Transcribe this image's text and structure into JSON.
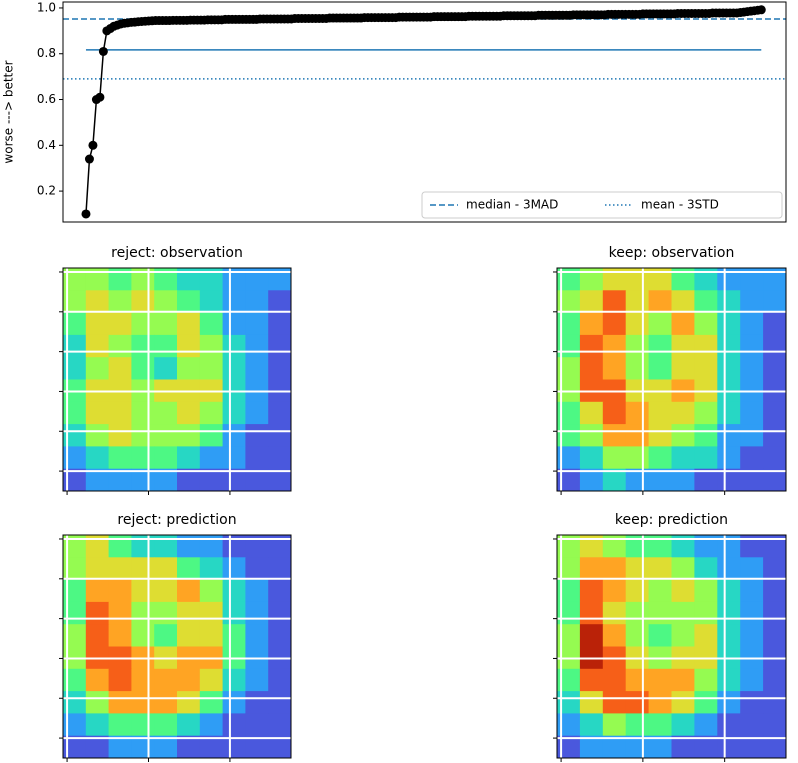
{
  "chart_data": [
    {
      "type": "line",
      "ylabel": "worse ---> better",
      "xlim": [
        -6.6,
        201.1
      ],
      "ylim": [
        0.065,
        1.026
      ],
      "yticks": [
        {
          "value": 0.2,
          "label": "0.2"
        },
        {
          "value": 0.4,
          "label": "0.4"
        },
        {
          "value": 0.6,
          "label": "0.6"
        },
        {
          "value": 0.8,
          "label": "0.8"
        },
        {
          "value": 1.0,
          "label": "1.0"
        }
      ],
      "series": [
        {
          "color": "#000000",
          "marker": "o",
          "values": [
            0.1,
            0.34,
            0.4,
            0.6,
            0.61,
            0.81,
            0.9,
            0.91,
            0.92,
            0.925,
            0.93,
            0.933,
            0.935,
            0.937,
            0.938,
            0.94,
            0.941,
            0.942,
            0.943,
            0.944,
            0.945,
            0.945,
            0.945,
            0.945,
            0.945,
            0.946,
            0.946,
            0.946,
            0.946,
            0.946,
            0.947,
            0.947,
            0.947,
            0.947,
            0.947,
            0.948,
            0.948,
            0.948,
            0.948,
            0.948,
            0.95,
            0.95,
            0.95,
            0.95,
            0.95,
            0.95,
            0.95,
            0.95,
            0.95,
            0.95,
            0.952,
            0.952,
            0.952,
            0.952,
            0.952,
            0.952,
            0.952,
            0.952,
            0.952,
            0.952,
            0.954,
            0.954,
            0.954,
            0.954,
            0.954,
            0.954,
            0.954,
            0.954,
            0.954,
            0.954,
            0.956,
            0.956,
            0.956,
            0.956,
            0.956,
            0.956,
            0.956,
            0.956,
            0.956,
            0.956,
            0.958,
            0.958,
            0.958,
            0.958,
            0.958,
            0.958,
            0.958,
            0.958,
            0.958,
            0.958,
            0.96,
            0.96,
            0.96,
            0.96,
            0.96,
            0.96,
            0.96,
            0.96,
            0.96,
            0.96,
            0.962,
            0.962,
            0.962,
            0.962,
            0.962,
            0.962,
            0.962,
            0.962,
            0.962,
            0.962,
            0.964,
            0.964,
            0.964,
            0.964,
            0.964,
            0.964,
            0.964,
            0.964,
            0.964,
            0.964,
            0.966,
            0.966,
            0.966,
            0.966,
            0.966,
            0.966,
            0.966,
            0.966,
            0.966,
            0.966,
            0.968,
            0.968,
            0.968,
            0.968,
            0.968,
            0.968,
            0.968,
            0.968,
            0.968,
            0.968,
            0.97,
            0.97,
            0.97,
            0.97,
            0.97,
            0.97,
            0.97,
            0.97,
            0.97,
            0.97,
            0.972,
            0.972,
            0.972,
            0.972,
            0.972,
            0.972,
            0.972,
            0.972,
            0.972,
            0.972,
            0.974,
            0.974,
            0.974,
            0.974,
            0.974,
            0.974,
            0.974,
            0.974,
            0.974,
            0.974,
            0.976,
            0.976,
            0.976,
            0.976,
            0.976,
            0.976,
            0.976,
            0.976,
            0.976,
            0.976,
            0.978,
            0.978,
            0.978,
            0.978,
            0.978,
            0.978,
            0.978,
            0.978,
            0.98,
            0.982,
            0.984,
            0.986,
            0.988,
            0.99,
            0.992
          ]
        }
      ],
      "hlines": [
        {
          "name": "median - 3MAD",
          "value": 0.952,
          "style": "dashed",
          "color": "#1f77b4"
        },
        {
          "name": "mean - 3STD",
          "value": 0.69,
          "style": "dotted",
          "color": "#1f77b4"
        },
        {
          "value": 0.817,
          "style": "solid",
          "color": "#1f77b4",
          "xrange": [
            0,
            194
          ]
        }
      ],
      "legend": "lower right"
    },
    {
      "type": "heatmap",
      "title": "reject: observation",
      "colormap": "turbo",
      "clim": [
        0,
        1
      ],
      "grid": true,
      "xlim": [
        -0.5,
        27.5
      ],
      "ylim": [
        27.5,
        -0.5
      ],
      "xticks": [
        0,
        10,
        20
      ],
      "yticks": [
        0,
        5,
        10,
        15,
        20,
        25
      ],
      "values": [
        [
          0.5,
          0.5,
          0.4,
          0.5,
          0.4,
          0.3,
          0.3,
          0.2,
          0.2,
          0.2
        ],
        [
          0.5,
          0.6,
          0.5,
          0.6,
          0.5,
          0.4,
          0.3,
          0.2,
          0.2,
          0.1
        ],
        [
          0.4,
          0.6,
          0.6,
          0.5,
          0.5,
          0.6,
          0.4,
          0.2,
          0.2,
          0.1
        ],
        [
          0.3,
          0.6,
          0.5,
          0.4,
          0.4,
          0.6,
          0.5,
          0.3,
          0.2,
          0.1
        ],
        [
          0.3,
          0.5,
          0.6,
          0.4,
          0.3,
          0.5,
          0.5,
          0.3,
          0.2,
          0.1
        ],
        [
          0.4,
          0.6,
          0.6,
          0.5,
          0.6,
          0.6,
          0.6,
          0.3,
          0.2,
          0.1
        ],
        [
          0.4,
          0.6,
          0.6,
          0.5,
          0.5,
          0.6,
          0.5,
          0.3,
          0.2,
          0.1
        ],
        [
          0.3,
          0.5,
          0.6,
          0.5,
          0.5,
          0.5,
          0.4,
          0.2,
          0.1,
          0.1
        ],
        [
          0.2,
          0.3,
          0.4,
          0.4,
          0.4,
          0.3,
          0.2,
          0.2,
          0.1,
          0.1
        ],
        [
          0.1,
          0.2,
          0.2,
          0.2,
          0.2,
          0.1,
          0.1,
          0.1,
          0.1,
          0.1
        ]
      ]
    },
    {
      "type": "heatmap",
      "title": "keep: observation",
      "colormap": "turbo",
      "clim": [
        0,
        1
      ],
      "grid": true,
      "xlim": [
        -0.5,
        27.5
      ],
      "ylim": [
        27.5,
        -0.5
      ],
      "xticks": [
        0,
        10,
        20
      ],
      "yticks": [
        0,
        5,
        10,
        15,
        20,
        25
      ],
      "values": [
        [
          0.4,
          0.5,
          0.6,
          0.6,
          0.6,
          0.4,
          0.3,
          0.2,
          0.2,
          0.2
        ],
        [
          0.5,
          0.6,
          0.8,
          0.6,
          0.7,
          0.6,
          0.4,
          0.3,
          0.2,
          0.2
        ],
        [
          0.4,
          0.7,
          0.8,
          0.6,
          0.5,
          0.7,
          0.5,
          0.3,
          0.2,
          0.1
        ],
        [
          0.4,
          0.8,
          0.7,
          0.5,
          0.4,
          0.6,
          0.6,
          0.3,
          0.2,
          0.1
        ],
        [
          0.5,
          0.8,
          0.7,
          0.5,
          0.4,
          0.6,
          0.6,
          0.3,
          0.2,
          0.1
        ],
        [
          0.5,
          0.8,
          0.8,
          0.6,
          0.6,
          0.7,
          0.6,
          0.3,
          0.2,
          0.1
        ],
        [
          0.4,
          0.6,
          0.8,
          0.7,
          0.6,
          0.6,
          0.5,
          0.3,
          0.2,
          0.1
        ],
        [
          0.4,
          0.5,
          0.7,
          0.7,
          0.6,
          0.5,
          0.4,
          0.2,
          0.2,
          0.1
        ],
        [
          0.2,
          0.3,
          0.5,
          0.5,
          0.4,
          0.3,
          0.3,
          0.2,
          0.1,
          0.1
        ],
        [
          0.1,
          0.2,
          0.3,
          0.2,
          0.2,
          0.2,
          0.1,
          0.1,
          0.1,
          0.1
        ]
      ]
    },
    {
      "type": "heatmap",
      "title": "reject: prediction",
      "colormap": "turbo",
      "clim": [
        0,
        1
      ],
      "grid": true,
      "xlim": [
        -0.5,
        27.5
      ],
      "ylim": [
        27.5,
        -0.5
      ],
      "xticks": [
        0,
        10,
        20
      ],
      "yticks": [
        0,
        5,
        10,
        15,
        20,
        25
      ],
      "values": [
        [
          0.5,
          0.6,
          0.4,
          0.3,
          0.3,
          0.2,
          0.2,
          0.1,
          0.1,
          0.1
        ],
        [
          0.5,
          0.6,
          0.6,
          0.6,
          0.6,
          0.4,
          0.3,
          0.2,
          0.1,
          0.1
        ],
        [
          0.4,
          0.7,
          0.7,
          0.6,
          0.6,
          0.7,
          0.5,
          0.3,
          0.2,
          0.1
        ],
        [
          0.4,
          0.8,
          0.7,
          0.5,
          0.5,
          0.6,
          0.6,
          0.3,
          0.2,
          0.1
        ],
        [
          0.5,
          0.8,
          0.7,
          0.5,
          0.4,
          0.6,
          0.6,
          0.4,
          0.2,
          0.1
        ],
        [
          0.5,
          0.8,
          0.8,
          0.7,
          0.6,
          0.7,
          0.7,
          0.4,
          0.2,
          0.1
        ],
        [
          0.4,
          0.7,
          0.8,
          0.7,
          0.7,
          0.7,
          0.6,
          0.3,
          0.2,
          0.1
        ],
        [
          0.3,
          0.5,
          0.7,
          0.7,
          0.7,
          0.6,
          0.4,
          0.2,
          0.1,
          0.1
        ],
        [
          0.2,
          0.3,
          0.4,
          0.4,
          0.4,
          0.3,
          0.2,
          0.1,
          0.1,
          0.1
        ],
        [
          0.1,
          0.1,
          0.2,
          0.2,
          0.2,
          0.1,
          0.1,
          0.1,
          0.1,
          0.1
        ]
      ]
    },
    {
      "type": "heatmap",
      "title": "keep: prediction",
      "colormap": "turbo",
      "clim": [
        0,
        1
      ],
      "grid": true,
      "xlim": [
        -0.5,
        27.5
      ],
      "ylim": [
        27.5,
        -0.5
      ],
      "xticks": [
        0,
        10,
        20
      ],
      "yticks": [
        0,
        5,
        10,
        15,
        20,
        25
      ],
      "values": [
        [
          0.5,
          0.6,
          0.5,
          0.4,
          0.4,
          0.3,
          0.2,
          0.2,
          0.1,
          0.1
        ],
        [
          0.5,
          0.7,
          0.7,
          0.6,
          0.6,
          0.5,
          0.3,
          0.2,
          0.2,
          0.1
        ],
        [
          0.4,
          0.8,
          0.7,
          0.6,
          0.5,
          0.6,
          0.5,
          0.3,
          0.2,
          0.1
        ],
        [
          0.4,
          0.8,
          0.6,
          0.5,
          0.5,
          0.5,
          0.5,
          0.3,
          0.2,
          0.1
        ],
        [
          0.5,
          0.9,
          0.7,
          0.5,
          0.4,
          0.5,
          0.6,
          0.3,
          0.2,
          0.1
        ],
        [
          0.5,
          0.9,
          0.8,
          0.6,
          0.5,
          0.6,
          0.6,
          0.3,
          0.2,
          0.1
        ],
        [
          0.4,
          0.8,
          0.8,
          0.7,
          0.7,
          0.7,
          0.5,
          0.3,
          0.2,
          0.1
        ],
        [
          0.3,
          0.6,
          0.8,
          0.8,
          0.7,
          0.6,
          0.4,
          0.2,
          0.1,
          0.1
        ],
        [
          0.2,
          0.3,
          0.5,
          0.4,
          0.4,
          0.3,
          0.2,
          0.1,
          0.1,
          0.1
        ],
        [
          0.1,
          0.2,
          0.2,
          0.2,
          0.2,
          0.1,
          0.1,
          0.1,
          0.1,
          0.1
        ]
      ]
    }
  ]
}
